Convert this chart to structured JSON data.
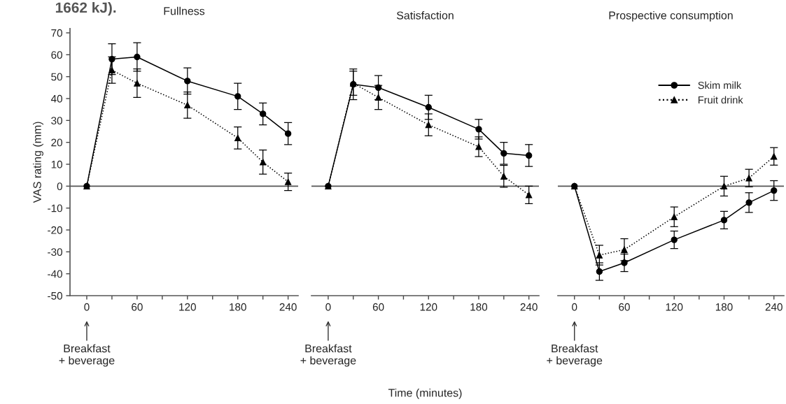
{
  "chart_data": [
    {
      "type": "line",
      "title": "Fullness",
      "ylabel": "VAS rating (mm)",
      "x": [
        0,
        30,
        60,
        120,
        180,
        210,
        240
      ],
      "series": [
        {
          "color": "#000000",
          "marker": "circle",
          "line_style": "solid",
          "values": [
            0,
            58,
            59,
            48,
            41,
            33,
            24
          ],
          "errors": [
            null,
            7,
            6.5,
            6,
            6,
            5,
            5
          ]
        },
        {
          "color": "#000000",
          "marker": "triangle",
          "line_style": "dotted",
          "values": [
            0,
            53,
            47,
            37,
            22,
            11,
            2
          ],
          "errors": [
            null,
            6,
            6.5,
            6,
            5,
            5.5,
            4
          ]
        }
      ],
      "xlim": [
        -20,
        252
      ],
      "ylim": [
        -50,
        72
      ],
      "xticks": [
        0,
        {
          "value": 30,
          "label": null
        },
        60,
        {
          "value": 90,
          "label": null
        },
        120,
        {
          "value": 150,
          "label": null
        },
        180,
        {
          "value": 210,
          "label": null
        },
        240
      ],
      "yticks": [
        -50,
        -40,
        -30,
        -20,
        -10,
        0,
        10,
        20,
        30,
        40,
        50,
        60,
        70
      ],
      "ref_lines": [
        {
          "axis": "y",
          "value": 0,
          "color": "#555555"
        }
      ],
      "annotations": [
        "1662 kJ).",
        "Breakfast\n+ beverage"
      ],
      "legend": false,
      "grid": false
    },
    {
      "type": "line",
      "title": "Satisfaction",
      "xlabel": "Time (minutes)",
      "ylim": [
        -50,
        70
      ],
      "x": [
        0,
        30,
        60,
        120,
        180,
        210,
        240
      ],
      "series": [
        {
          "color": "#000000",
          "marker": "circle",
          "line_style": "solid",
          "values": [
            0,
            46.5,
            45,
            36,
            26,
            15,
            14
          ],
          "errors": [
            null,
            7,
            5.5,
            5.5,
            4.5,
            5,
            5
          ]
        },
        {
          "color": "#000000",
          "marker": "triangle",
          "line_style": "dotted",
          "values": [
            0,
            47,
            40.5,
            28,
            18,
            4.5,
            -4
          ],
          "errors": [
            null,
            5.5,
            5.5,
            5,
            4.5,
            5,
            4
          ]
        }
      ],
      "xlim": [
        -20,
        252
      ],
      "xticks": [
        0,
        {
          "value": 30,
          "label": null
        },
        60,
        {
          "value": 90,
          "label": null
        },
        120,
        {
          "value": 150,
          "label": null
        },
        180,
        {
          "value": 210,
          "label": null
        },
        240
      ],
      "yticks": [
        -50,
        -40,
        -30,
        -20,
        -10,
        0,
        10,
        20,
        30,
        40,
        50,
        60,
        70
      ],
      "tick_labels": "x",
      "ref_lines": [
        {
          "axis": "y",
          "value": 0,
          "color": "#555555"
        }
      ],
      "annotations": [
        "Breakfast\n+ beverage"
      ],
      "legend": false,
      "grid": false
    },
    {
      "type": "line",
      "title": "Prospective consumption",
      "ylim": [
        -50,
        70
      ],
      "x": [
        0,
        30,
        60,
        120,
        180,
        210,
        240
      ],
      "series": [
        {
          "name": "Skim milk",
          "color": "#000000",
          "marker": "circle",
          "line_style": "solid",
          "values": [
            0,
            -39,
            -35,
            -24.5,
            -15.5,
            -7.5,
            -2
          ],
          "errors": [
            null,
            4,
            4,
            4,
            4,
            4.5,
            4.5
          ]
        },
        {
          "name": "Fruit drink",
          "color": "#000000",
          "marker": "triangle",
          "line_style": "dotted",
          "values": [
            0,
            -31.5,
            -29,
            -14,
            0,
            3.7,
            13.6
          ],
          "errors": [
            null,
            4.5,
            5,
            4.5,
            4.5,
            4,
            4
          ]
        }
      ],
      "xlim": [
        -20,
        252
      ],
      "xticks": [
        0,
        {
          "value": 30,
          "label": null
        },
        60,
        {
          "value": 90,
          "label": null
        },
        120,
        {
          "value": 150,
          "label": null
        },
        180,
        {
          "value": 210,
          "label": null
        },
        240
      ],
      "yticks": [
        -50,
        -40,
        -30,
        -20,
        -10,
        0,
        10,
        20,
        30,
        40,
        50,
        60,
        70
      ],
      "tick_labels": "x",
      "ref_lines": [
        {
          "axis": "y",
          "value": 0,
          "color": "#555555"
        }
      ],
      "annotations": [
        "Breakfast\n+ beverage"
      ],
      "legend": "top right",
      "grid": false
    }
  ]
}
